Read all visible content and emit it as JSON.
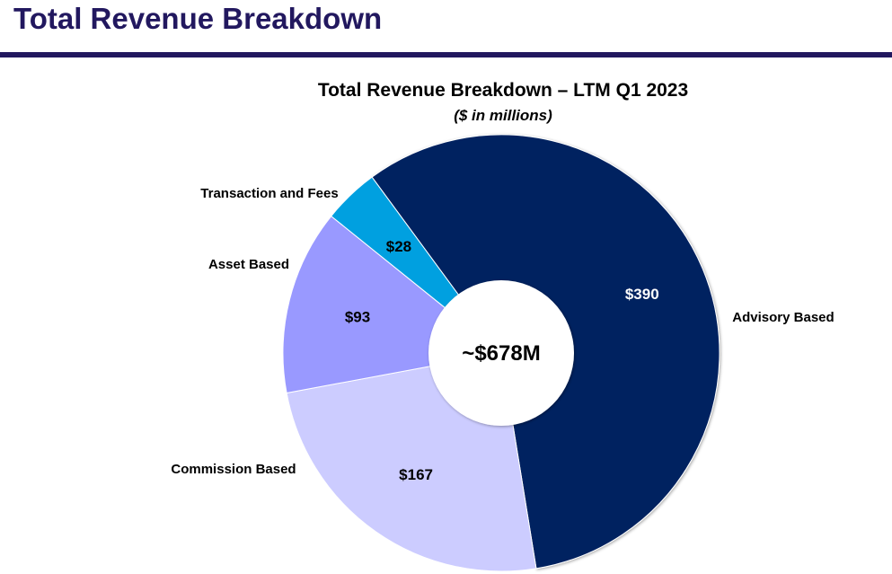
{
  "header": {
    "title": "Total Revenue Breakdown"
  },
  "chart_data": {
    "type": "pie",
    "donut": true,
    "title": "Total Revenue Breakdown – LTM Q1 2023",
    "subtitle": "($ in millions)",
    "center_label": "~$678M",
    "categories": [
      "Advisory Based",
      "Commission Based",
      "Asset Based",
      "Transaction and Fees"
    ],
    "values": [
      390,
      167,
      93,
      28
    ],
    "value_labels": [
      "$390",
      "$167",
      "$93",
      "$28"
    ],
    "colors": [
      "#022260",
      "#ccccff",
      "#9999ff",
      "#00a0e0"
    ],
    "value_label_colors": [
      "#ffffff",
      "#000000",
      "#000000",
      "#000000"
    ]
  }
}
